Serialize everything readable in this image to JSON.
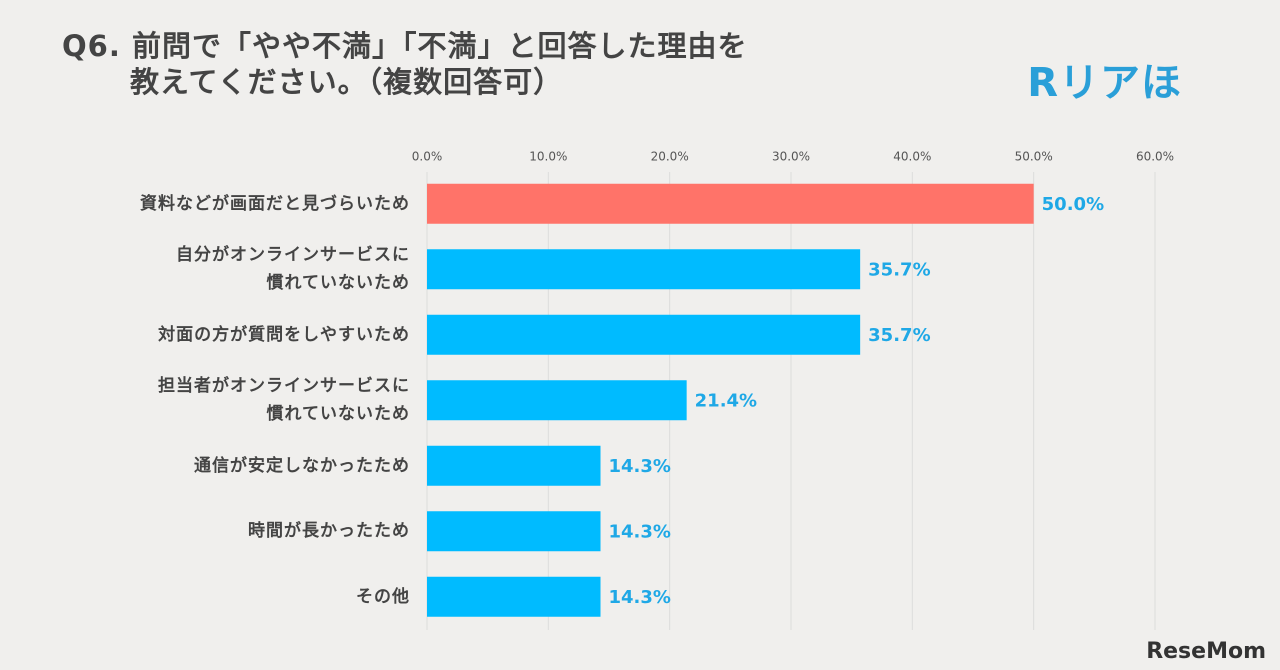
{
  "chart_data": {
    "type": "bar",
    "orientation": "horizontal",
    "title": "Q6. 前問で「やや不満」「不満」と回答した理由を\n教えてください。（複数回答可）",
    "logo": "Rリアほ",
    "watermark": "ReseMom",
    "categories": [
      "資料などが画面だと見づらいため",
      "自分がオンラインサービスに\n慣れていないため",
      "対面の方が質問をしやすいため",
      "担当者がオンラインサービスに\n慣れていないため",
      "通信が安定しなかったため",
      "時間が長かったため",
      "その他"
    ],
    "values": [
      50.0,
      35.7,
      35.7,
      21.4,
      14.3,
      14.3,
      14.3
    ],
    "value_labels": [
      "50.0%",
      "35.7%",
      "35.7%",
      "21.4%",
      "14.3%",
      "14.3%",
      "14.3%"
    ],
    "colors": [
      "#ff7369",
      "#00bbff",
      "#00bbff",
      "#00bbff",
      "#00bbff",
      "#00bbff",
      "#00bbff"
    ],
    "xlim": [
      0,
      60
    ],
    "xticks": [
      {
        "value": 0,
        "label": "0.0%"
      },
      {
        "value": 10,
        "label": "10.0%"
      },
      {
        "value": 20,
        "label": "20.0%"
      },
      {
        "value": 30,
        "label": "30.0%"
      },
      {
        "value": 40,
        "label": "40.0%"
      },
      {
        "value": 50,
        "label": "50.0%"
      },
      {
        "value": 60,
        "label": "60.0%"
      }
    ],
    "grid": true
  }
}
